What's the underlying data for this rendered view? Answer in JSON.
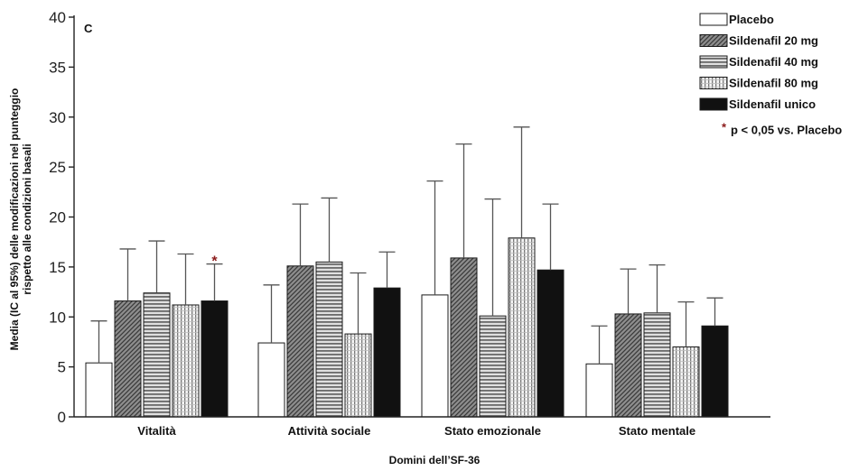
{
  "chart_data": {
    "type": "bar",
    "panel_label": "C",
    "xlabel": "Domini dell’SF-36",
    "ylabel_lines": [
      "Media (IC al 95%) delle modificazioni nel punteggio",
      "rispetto alle condizioni basali"
    ],
    "ylim": [
      0,
      40
    ],
    "yticks": [
      0,
      5,
      10,
      15,
      20,
      25,
      30,
      35,
      40
    ],
    "categories": [
      "Vitalità",
      "Attività sociale",
      "Stato emozionale",
      "Stato mentale"
    ],
    "series": [
      {
        "name": "Placebo",
        "values": [
          5.4,
          7.4,
          12.2,
          5.3
        ],
        "upper": [
          9.6,
          13.2,
          23.6,
          9.1
        ],
        "pattern": "white"
      },
      {
        "name": "Sildenafil 20 mg",
        "values": [
          11.6,
          15.1,
          15.9,
          10.3
        ],
        "upper": [
          16.8,
          21.3,
          27.3,
          14.8
        ],
        "pattern": "diag"
      },
      {
        "name": "Sildenafil 40 mg",
        "values": [
          12.4,
          15.5,
          10.1,
          10.4
        ],
        "upper": [
          17.6,
          21.9,
          21.8,
          15.2
        ],
        "pattern": "horiz"
      },
      {
        "name": "Sildenafil 80 mg",
        "values": [
          11.2,
          8.3,
          17.9,
          7.0
        ],
        "upper": [
          16.3,
          14.4,
          29.0,
          11.5
        ],
        "pattern": "grid"
      },
      {
        "name": "Sildenafil unico",
        "values": [
          11.6,
          12.9,
          14.7,
          9.1
        ],
        "upper": [
          15.3,
          16.5,
          21.3,
          11.9
        ],
        "pattern": "black"
      }
    ],
    "significance_markers": [
      {
        "category": "Vitalità",
        "series": "Sildenafil unico",
        "symbol": "*"
      }
    ],
    "significance_note": "p < 0,05 vs. Placebo",
    "legend_position": "top-right",
    "grid": false
  }
}
